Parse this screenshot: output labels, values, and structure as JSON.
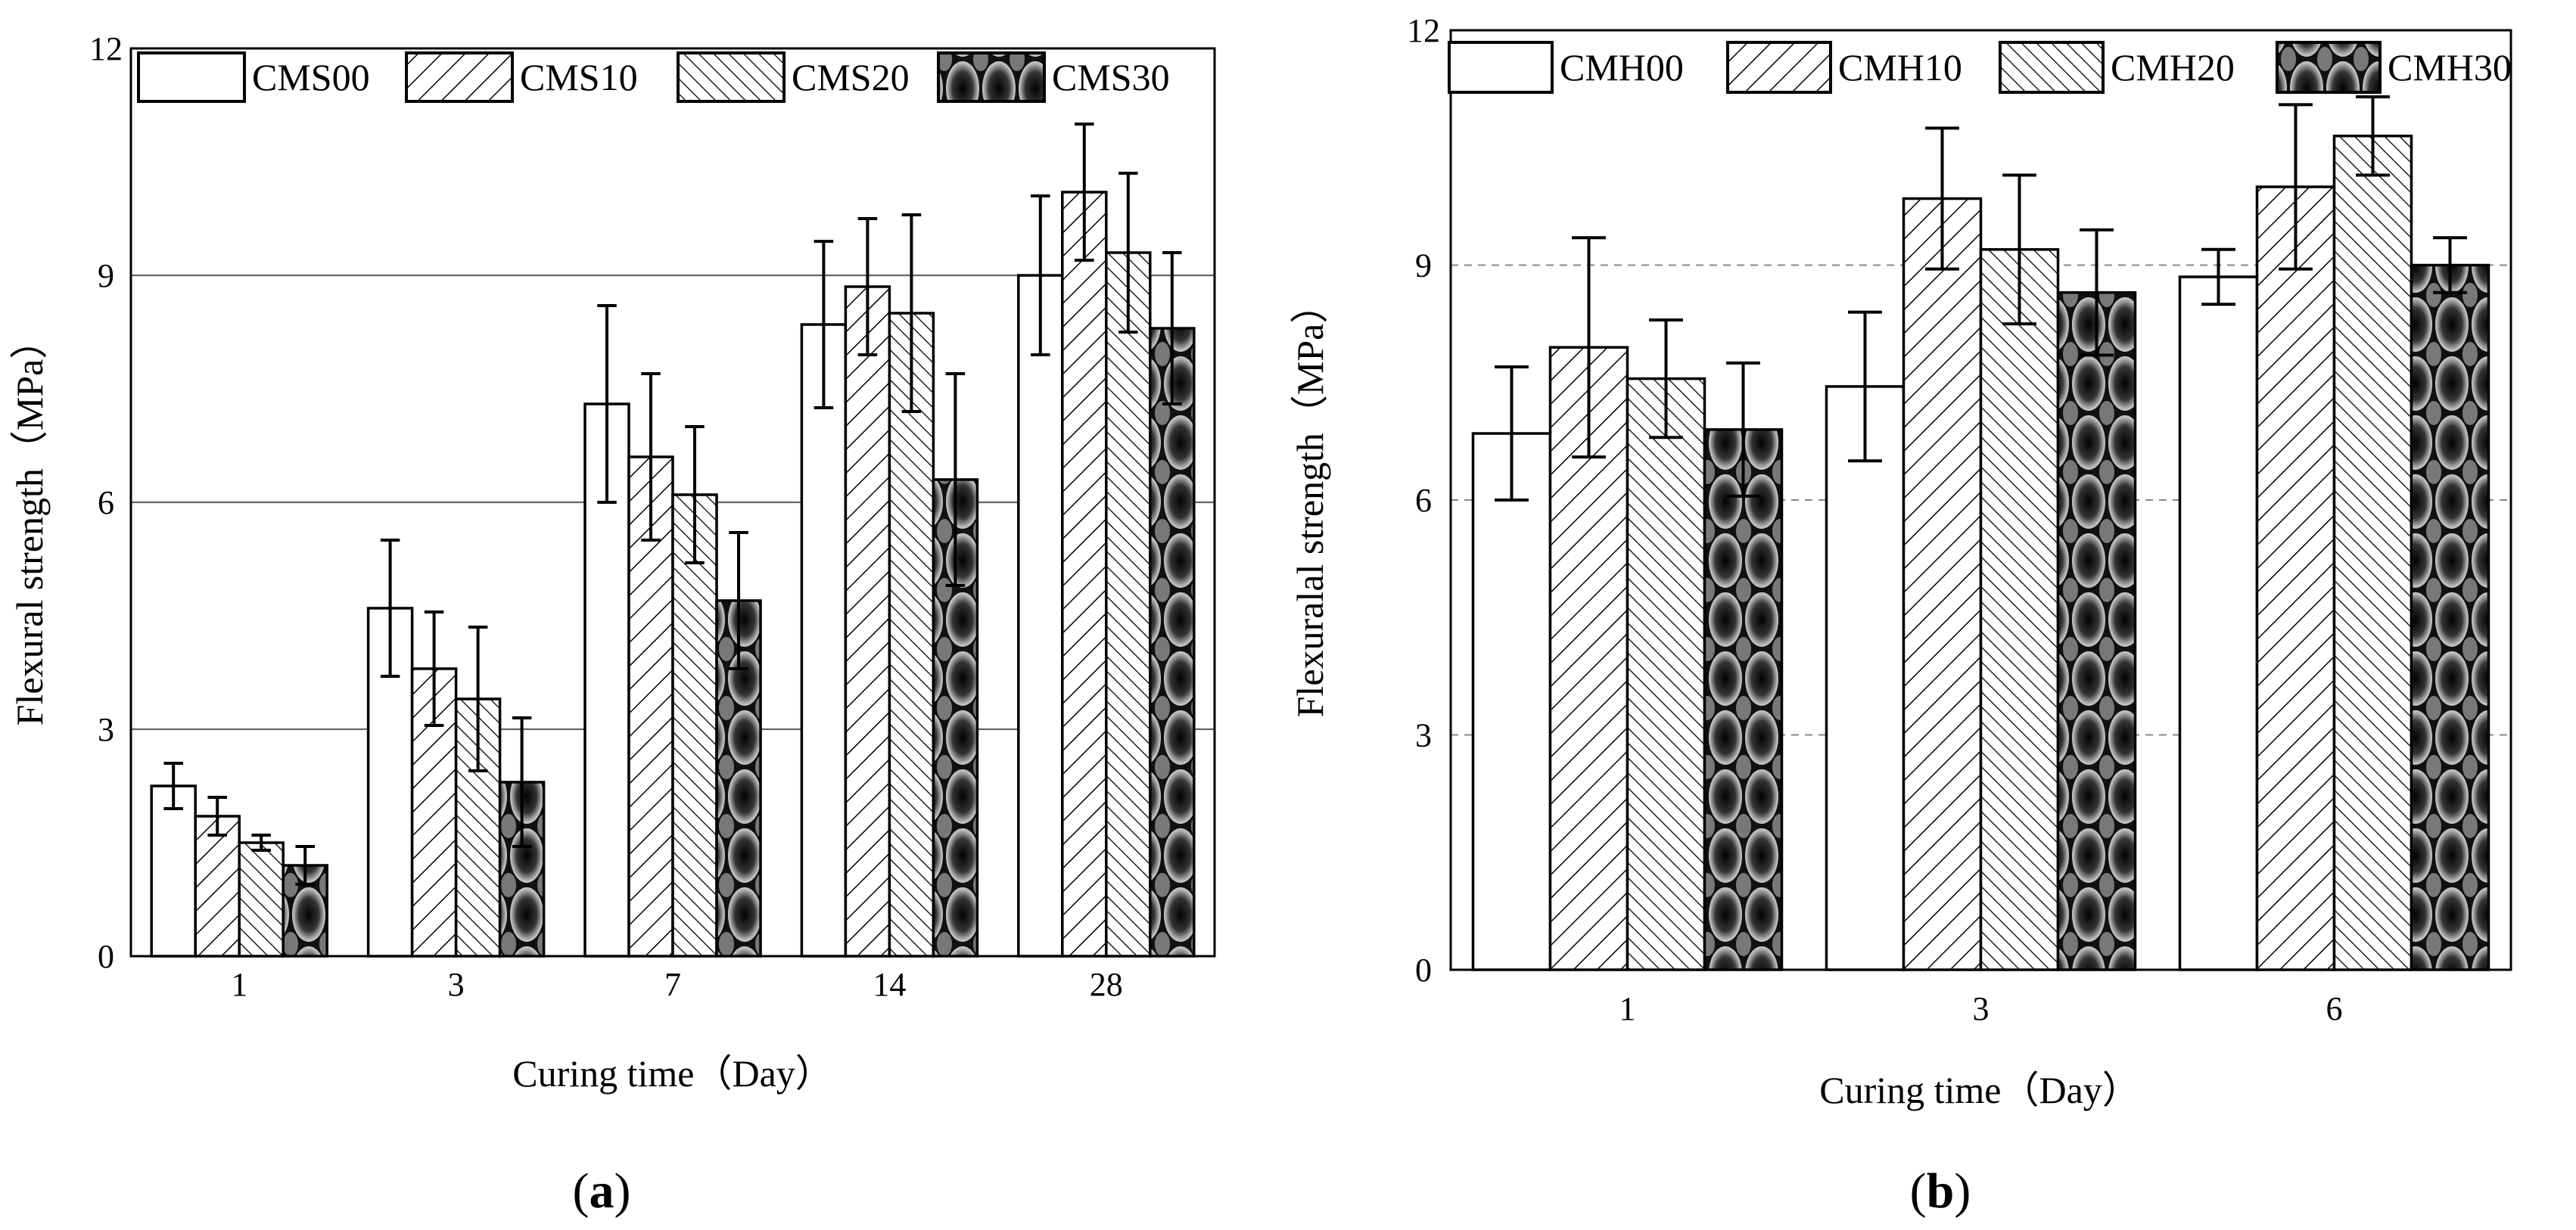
{
  "chart_data": [
    {
      "type": "bar",
      "panel_label": "a",
      "xlabel": "Curing time（Day）",
      "ylabel": "Flexural strength（MPa）",
      "ylim": [
        0,
        12
      ],
      "yticks": [
        "0",
        "3",
        "6",
        "9",
        "12"
      ],
      "grid": "solid horizontal",
      "legend_position": "top",
      "categories": [
        "1",
        "3",
        "7",
        "14",
        "28"
      ],
      "series": [
        {
          "name": "CMS00",
          "pattern": "white",
          "values": [
            2.25,
            4.6,
            7.3,
            8.35,
            9.0
          ],
          "errors": [
            0.3,
            0.9,
            1.3,
            1.1,
            1.05
          ]
        },
        {
          "name": "CMS10",
          "pattern": "hatch",
          "values": [
            1.85,
            3.8,
            6.6,
            8.85,
            10.1
          ],
          "errors": [
            0.25,
            0.75,
            1.1,
            0.9,
            0.9
          ]
        },
        {
          "name": "CMS20",
          "pattern": "crosshatch",
          "values": [
            1.5,
            3.4,
            6.1,
            8.5,
            9.3
          ],
          "errors": [
            0.1,
            0.95,
            0.9,
            1.3,
            1.05
          ]
        },
        {
          "name": "CMS30",
          "pattern": "dark",
          "values": [
            1.2,
            2.3,
            4.7,
            6.3,
            8.3
          ],
          "errors": [
            0.25,
            0.85,
            0.9,
            1.4,
            1.0
          ]
        }
      ]
    },
    {
      "type": "bar",
      "panel_label": "b",
      "xlabel": "Curing time（Day）",
      "ylabel": "Flexuralal strength（MPa）",
      "ylim": [
        0,
        12
      ],
      "yticks": [
        "0",
        "3",
        "6",
        "9",
        "12"
      ],
      "grid": "dashed horizontal",
      "legend_position": "top",
      "categories": [
        "1",
        "3",
        "6"
      ],
      "series": [
        {
          "name": "CMH00",
          "pattern": "white",
          "values": [
            6.85,
            7.45,
            8.85
          ],
          "errors": [
            0.85,
            0.95,
            0.35
          ]
        },
        {
          "name": "CMH10",
          "pattern": "hatch",
          "values": [
            7.95,
            9.85,
            10.0
          ],
          "errors": [
            1.4,
            0.9,
            1.05
          ]
        },
        {
          "name": "CMH20",
          "pattern": "crosshatch",
          "values": [
            7.55,
            9.2,
            10.65
          ],
          "errors": [
            0.75,
            0.95,
            0.5
          ]
        },
        {
          "name": "CMH30",
          "pattern": "dark",
          "values": [
            6.9,
            8.65,
            9.0
          ],
          "errors": [
            0.85,
            0.8,
            0.35
          ]
        }
      ]
    }
  ]
}
